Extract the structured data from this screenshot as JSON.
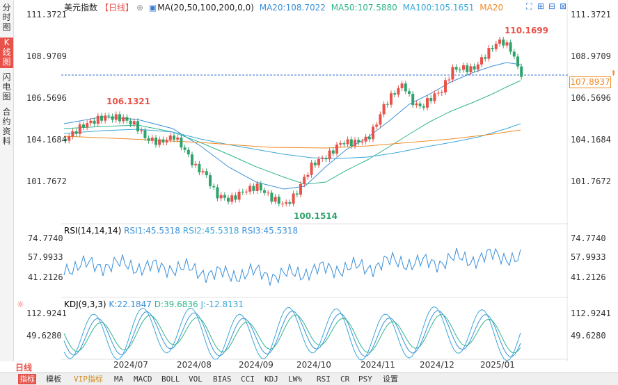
{
  "sidebar": {
    "tabs": [
      {
        "label": "分时图",
        "active": false
      },
      {
        "label": "K线图",
        "active": true
      },
      {
        "label": "闪电图",
        "active": false
      },
      {
        "label": "合约资料",
        "active": false
      }
    ]
  },
  "header": {
    "name": "美元指数",
    "period": "【日线】",
    "ma_label": "MA(20,50,100,200,0,0)",
    "ma20": "MA20:108.7022",
    "ma50": "MA50:107.5880",
    "ma100": "MA100:105.1651",
    "ma200": "MA20"
  },
  "price_axis": [
    "111.3721",
    "108.9709",
    "106.5696",
    "104.1684",
    "101.7672"
  ],
  "current_price": "107.8937",
  "annotations": {
    "high": "110.1699",
    "mid_high": "106.1321",
    "low": "100.1514"
  },
  "rsi": {
    "label": "RSI(14,14,14)",
    "rsi1": "RSI1:45.5318",
    "rsi2": "RSI2:45.5318",
    "rsi3": "RSI3:45.5318",
    "axis": [
      "74.7740",
      "57.9933",
      "41.2126"
    ]
  },
  "kdj": {
    "label": "KDJ(9,3,3)",
    "k": "K:22.1847",
    "d": "D:39.6836",
    "j": "J:-12.8131",
    "axis": [
      "112.9241",
      "49.6280"
    ]
  },
  "dates": [
    "2024/07",
    "2024/08",
    "2024/09",
    "2024/10",
    "2024/11",
    "2024/12",
    "2025/01"
  ],
  "period_label": "日线",
  "bottom_tabs": [
    "指标",
    "模板",
    "VIP指标",
    "MA",
    "MACD",
    "BOLL",
    "VOL",
    "BIAS",
    "CCI",
    "KDJ",
    "LW%",
    "RSI",
    "CR",
    "PSY",
    "设置"
  ],
  "colors": {
    "up": "#e8524a",
    "down": "#2fa36b",
    "ma20": "#3a8fd9",
    "ma50": "#2fb58c",
    "ma100": "#3aa7d9",
    "ma200": "#f08a24"
  }
}
